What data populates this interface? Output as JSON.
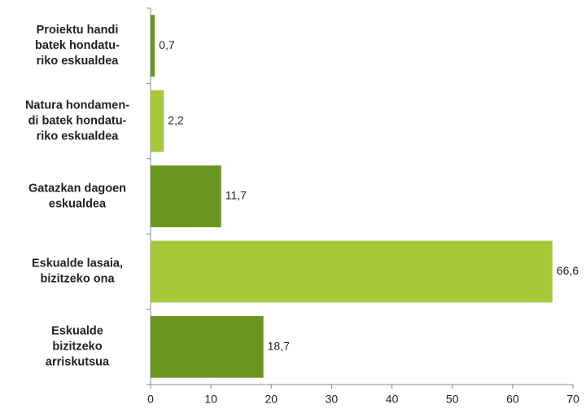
{
  "chart_data": {
    "type": "hbar",
    "categories": [
      [
        "Proiektu handi",
        "batek hondatu-",
        "riko eskualdea"
      ],
      [
        "Natura hondamen-",
        "di batek hondatu-",
        "riko eskualdea"
      ],
      [
        "Gatazkan dagoen",
        "eskualdea"
      ],
      [
        "Eskualde lasaia,",
        "bizitzeko ona"
      ],
      [
        "Eskualde",
        "bizitzeko",
        "arriskutsua"
      ]
    ],
    "values": [
      0.7,
      2.2,
      11.7,
      66.6,
      18.7
    ],
    "value_labels": [
      "0,7",
      "2,2",
      "11,7",
      "66,6",
      "18,7"
    ],
    "colors": [
      "#6a961f",
      "#a8c83c",
      "#6a961f",
      "#a8c83c",
      "#6a961f"
    ],
    "xlim": [
      0,
      70
    ],
    "xticks": [
      0,
      10,
      20,
      30,
      40,
      50,
      60,
      70
    ]
  }
}
